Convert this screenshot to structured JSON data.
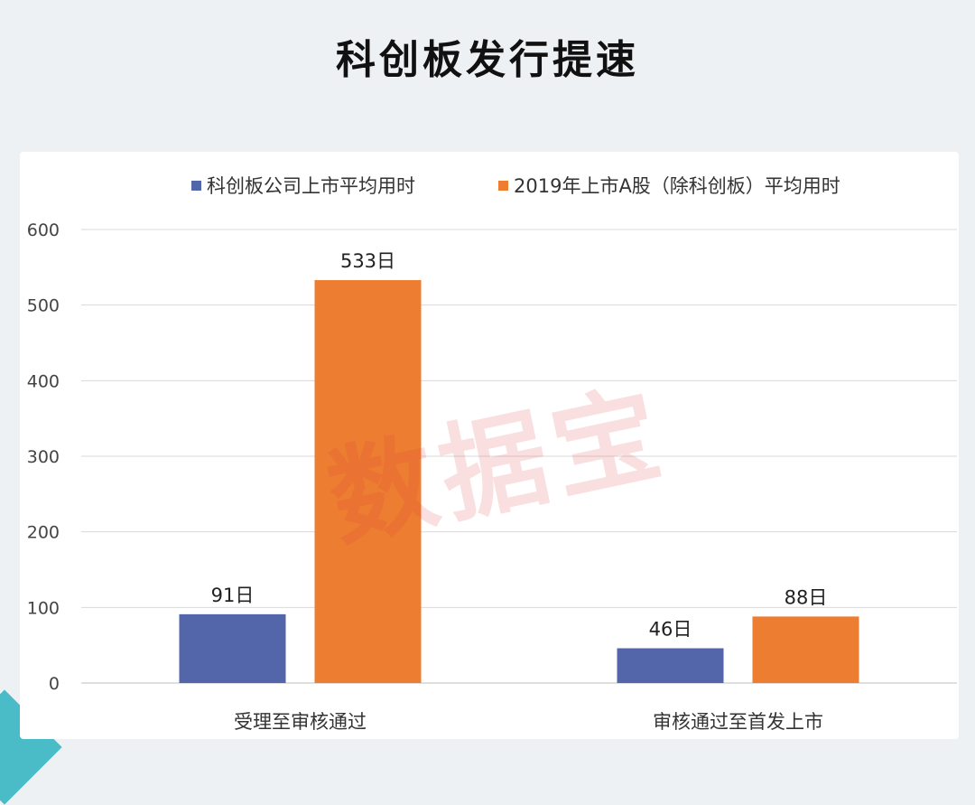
{
  "title": "科创板发行提速",
  "watermark": "数据宝",
  "colors": {
    "series1": "#5366a9",
    "series2": "#ed7d31"
  },
  "chart_data": {
    "type": "bar",
    "categories": [
      "受理至审核通过",
      "审核通过至首发上市"
    ],
    "series": [
      {
        "name": "科创板公司上市平均用时",
        "values": [
          91,
          46
        ],
        "labels": [
          "91日",
          "46日"
        ]
      },
      {
        "name": "2019年上市A股（除科创板）平均用时",
        "values": [
          533,
          88
        ],
        "labels": [
          "533日",
          "88日"
        ]
      }
    ],
    "yticks": [
      "0",
      "100",
      "200",
      "300",
      "400",
      "500",
      "600"
    ],
    "ylim": [
      0,
      600
    ],
    "grid": true,
    "legend_position": "top"
  }
}
